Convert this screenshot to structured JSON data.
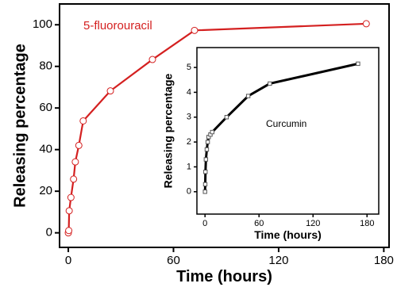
{
  "chart_data": [
    {
      "type": "line",
      "xlabel": "Time (hours)",
      "ylabel": "Releasing percentage",
      "annotation": "5-fluorouracil",
      "x": [
        0,
        0.25,
        0.5,
        1.5,
        3,
        4,
        6,
        8.5,
        24,
        48,
        72,
        170
      ],
      "series": [
        {
          "name": "5-fluorouracil",
          "color": "#d42020",
          "values": [
            0,
            1.1,
            10.6,
            17,
            25.8,
            34.1,
            42,
            53.8,
            68.2,
            83.3,
            97.3,
            100.5
          ]
        }
      ],
      "xlim": [
        -5,
        183
      ],
      "xticks": [
        0,
        60,
        120,
        180
      ],
      "ylim": [
        -7,
        110
      ],
      "yticks": [
        0,
        20,
        40,
        60,
        80,
        100
      ]
    },
    {
      "type": "line",
      "xlabel": "Time (hours)",
      "ylabel": "Releasing percentage",
      "annotation": "Curcumin",
      "x": [
        0,
        0.25,
        0.5,
        1,
        2,
        3,
        4,
        6,
        8,
        24,
        48,
        72,
        170
      ],
      "series": [
        {
          "name": "Curcumin",
          "color": "#000000",
          "values": [
            0,
            0.3,
            0.8,
            1.3,
            1.7,
            2.0,
            2.2,
            2.3,
            2.4,
            3.0,
            3.85,
            4.35,
            5.15
          ]
        }
      ],
      "xlim": [
        -9,
        193
      ],
      "xticks": [
        0,
        60,
        120,
        180
      ],
      "ylim": [
        -0.9,
        5.8
      ],
      "yticks": [
        0,
        1,
        2,
        3,
        4,
        5
      ]
    }
  ]
}
